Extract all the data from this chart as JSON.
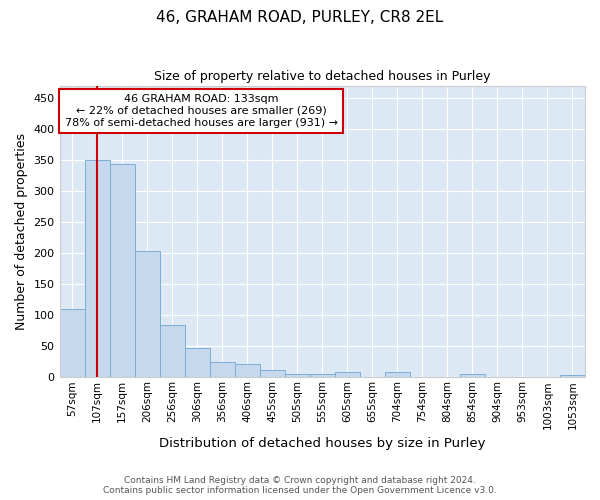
{
  "title_line1": "46, GRAHAM ROAD, PURLEY, CR8 2EL",
  "title_line2": "Size of property relative to detached houses in Purley",
  "xlabel": "Distribution of detached houses by size in Purley",
  "ylabel": "Number of detached properties",
  "footer_line1": "Contains HM Land Registry data © Crown copyright and database right 2024.",
  "footer_line2": "Contains public sector information licensed under the Open Government Licence v3.0.",
  "annotation_line1": "46 GRAHAM ROAD: 133sqm",
  "annotation_line2": "← 22% of detached houses are smaller (269)",
  "annotation_line3": "78% of semi-detached houses are larger (931) →",
  "bar_color": "#c5d8ee",
  "bar_edge_color": "#7badd4",
  "vline_color": "#cc0000",
  "annotation_box_edge_color": "#cc0000",
  "background_color": "#dce9f5",
  "categories": [
    "57sqm",
    "107sqm",
    "157sqm",
    "206sqm",
    "256sqm",
    "306sqm",
    "356sqm",
    "406sqm",
    "455sqm",
    "505sqm",
    "555sqm",
    "605sqm",
    "655sqm",
    "704sqm",
    "754sqm",
    "804sqm",
    "854sqm",
    "904sqm",
    "953sqm",
    "1003sqm",
    "1053sqm"
  ],
  "values": [
    110,
    350,
    343,
    203,
    85,
    47,
    25,
    22,
    11,
    5,
    5,
    8,
    0,
    8,
    0,
    0,
    5,
    0,
    0,
    0,
    3
  ],
  "ylim": [
    0,
    470
  ],
  "yticks": [
    0,
    50,
    100,
    150,
    200,
    250,
    300,
    350,
    400,
    450
  ],
  "vline_x_index": 1.0,
  "figsize": [
    6.0,
    5.0
  ],
  "dpi": 100
}
